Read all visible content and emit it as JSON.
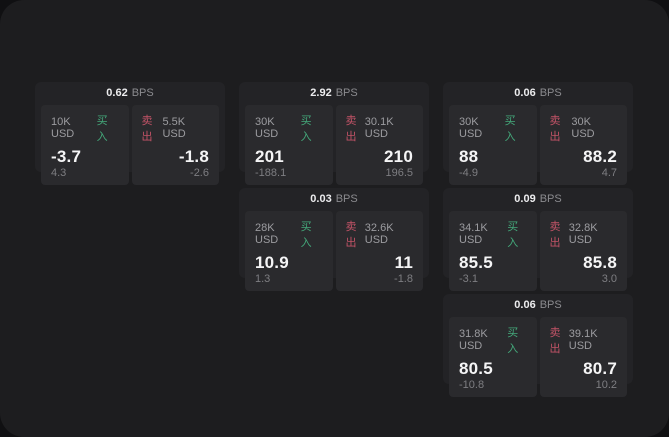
{
  "labels": {
    "buy": "买入",
    "sell": "卖出",
    "bps_suffix": "BPS"
  },
  "colors": {
    "backdrop": "#101012",
    "window": "#1d1d1f",
    "card": "#232326",
    "panel": "#2a2a2d",
    "buy_green": "#44a97b",
    "sell_red": "#c25367"
  },
  "cards": [
    {
      "row": 1,
      "col": 1,
      "bps": "0.62",
      "buy": {
        "size": "10K USD",
        "value": "-3.7",
        "delta": "4.3"
      },
      "sell": {
        "size": "5.5K USD",
        "value": "-1.8",
        "delta": "-2.6"
      }
    },
    {
      "row": 1,
      "col": 2,
      "bps": "2.92",
      "buy": {
        "size": "30K USD",
        "value": "201",
        "delta": "-188.1"
      },
      "sell": {
        "size": "30.1K USD",
        "value": "210",
        "delta": "196.5"
      }
    },
    {
      "row": 1,
      "col": 3,
      "bps": "0.06",
      "buy": {
        "size": "30K USD",
        "value": "88",
        "delta": "-4.9"
      },
      "sell": {
        "size": "30K USD",
        "value": "88.2",
        "delta": "4.7"
      }
    },
    {
      "row": 2,
      "col": 2,
      "bps": "0.03",
      "buy": {
        "size": "28K USD",
        "value": "10.9",
        "delta": "1.3"
      },
      "sell": {
        "size": "32.6K USD",
        "value": "11",
        "delta": "-1.8"
      }
    },
    {
      "row": 2,
      "col": 3,
      "bps": "0.09",
      "buy": {
        "size": "34.1K USD",
        "value": "85.5",
        "delta": "-3.1"
      },
      "sell": {
        "size": "32.8K USD",
        "value": "85.8",
        "delta": "3.0"
      }
    },
    {
      "row": 3,
      "col": 3,
      "bps": "0.06",
      "buy": {
        "size": "31.8K USD",
        "value": "80.5",
        "delta": "-10.8"
      },
      "sell": {
        "size": "39.1K USD",
        "value": "80.7",
        "delta": "10.2"
      }
    }
  ]
}
